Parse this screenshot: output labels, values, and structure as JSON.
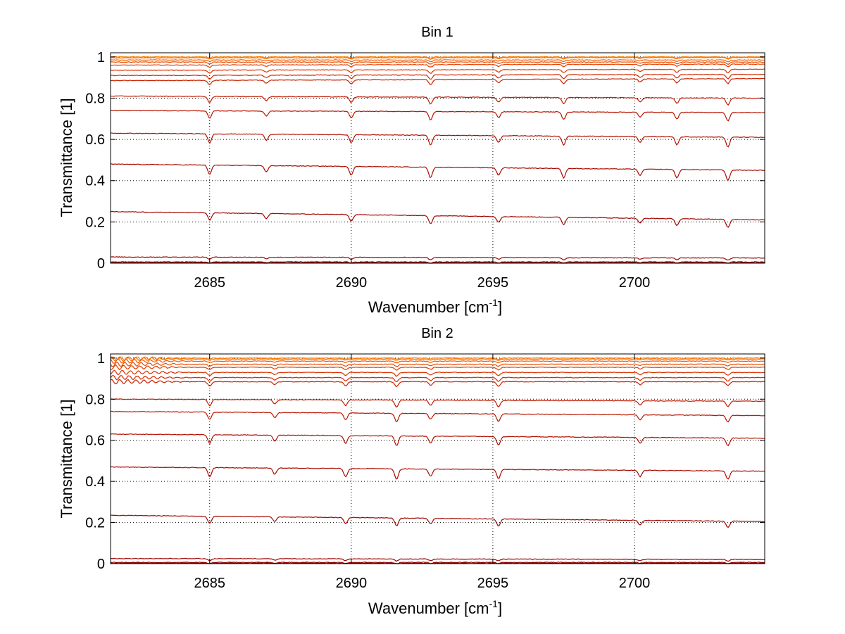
{
  "chart_data": [
    {
      "type": "line",
      "title": "Bin 1",
      "xlabel": "Wavenumber [cm",
      "xlabel_sup": "-1",
      "xlabel_end": "]",
      "ylabel": "Transmittance [1]",
      "xlim": [
        2681.5,
        2704.6
      ],
      "ylim": [
        0,
        1.02
      ],
      "xticks": [
        2685,
        2690,
        2695,
        2700
      ],
      "yticks": [
        0,
        0.2,
        0.4,
        0.6,
        0.8,
        1
      ],
      "ytick_labels": [
        "0",
        "0.2",
        "0.4",
        "0.6",
        "0.8",
        "1"
      ],
      "grid": true,
      "series": [
        {
          "start": 1.0,
          "end": 1.0,
          "color": "#ff8000",
          "lines": [
            2685,
            2687,
            2690,
            2692.8,
            2695.2,
            2697.5,
            2700.2,
            2701.5,
            2703.3
          ]
        },
        {
          "start": 0.995,
          "end": 0.997,
          "color": "#ff6a00",
          "lines": [
            2685,
            2687,
            2690,
            2692.8,
            2695.2,
            2697.5,
            2700.2,
            2701.5,
            2703.3
          ]
        },
        {
          "start": 0.985,
          "end": 0.985,
          "color": "#f25a00",
          "lines": [
            2685,
            2687,
            2690,
            2692.8,
            2695.2,
            2697.5,
            2700.2,
            2701.5,
            2703.3
          ]
        },
        {
          "start": 0.975,
          "end": 0.975,
          "color": "#e84a00",
          "lines": [
            2685,
            2687,
            2690,
            2692.8,
            2695.2,
            2697.5,
            2700.2,
            2701.5,
            2703.3
          ]
        },
        {
          "start": 0.96,
          "end": 0.965,
          "color": "#e03e00",
          "lines": [
            2685,
            2687,
            2690,
            2692.8,
            2695.2,
            2697.5,
            2700.2,
            2701.5,
            2703.3
          ]
        },
        {
          "start": 0.935,
          "end": 0.94,
          "color": "#d83300",
          "lines": [
            2685,
            2687,
            2690,
            2692.8,
            2695.2,
            2697.5,
            2700.2,
            2701.5,
            2703.3
          ]
        },
        {
          "start": 0.91,
          "end": 0.915,
          "color": "#d02a00",
          "lines": [
            2685,
            2687,
            2690,
            2692.8,
            2695.2,
            2697.5,
            2700.2,
            2701.5,
            2703.3
          ]
        },
        {
          "start": 0.885,
          "end": 0.895,
          "color": "#c82200",
          "lines": [
            2685,
            2687,
            2690,
            2692.8,
            2695.2,
            2697.5,
            2700.2,
            2701.5,
            2703.3
          ]
        },
        {
          "start": 0.81,
          "end": 0.8,
          "color": "#c01a00",
          "lines": [
            2685,
            2687,
            2690,
            2692.8,
            2695.2,
            2697.5,
            2700.2,
            2701.5,
            2703.3
          ]
        },
        {
          "start": 0.74,
          "end": 0.73,
          "color": "#b81400",
          "lines": [
            2685,
            2687,
            2690,
            2692.8,
            2695.2,
            2697.5,
            2700.2,
            2701.5,
            2703.3
          ]
        },
        {
          "start": 0.63,
          "end": 0.61,
          "color": "#b00e00",
          "lines": [
            2685,
            2687,
            2690,
            2692.8,
            2695.2,
            2697.5,
            2700.2,
            2701.5,
            2703.3
          ]
        },
        {
          "start": 0.48,
          "end": 0.45,
          "color": "#a80a00",
          "lines": [
            2685,
            2687,
            2690,
            2692.8,
            2695.2,
            2697.5,
            2700.2,
            2701.5,
            2703.3
          ]
        },
        {
          "start": 0.25,
          "end": 0.21,
          "color": "#a00600",
          "lines": [
            2685,
            2687,
            2690,
            2692.8,
            2695.2,
            2697.5,
            2700.2,
            2701.5,
            2703.3
          ]
        },
        {
          "start": 0.03,
          "end": 0.025,
          "color": "#980300",
          "lines": [
            2685,
            2687,
            2690,
            2692.8,
            2695.2,
            2697.5,
            2700.2,
            2701.5,
            2703.3
          ]
        },
        {
          "start": 0.006,
          "end": 0.006,
          "color": "#900000",
          "lines": [
            2685,
            2687,
            2690,
            2692.8,
            2695.2,
            2697.5,
            2700.2,
            2701.5,
            2703.3
          ]
        },
        {
          "start": 0.002,
          "end": 0.002,
          "color": "#880000",
          "lines": [
            2685,
            2687,
            2690,
            2692.8,
            2695.2,
            2697.5,
            2700.2,
            2701.5,
            2703.3
          ]
        }
      ]
    },
    {
      "type": "line",
      "title": "Bin 2",
      "xlabel": "Wavenumber [cm",
      "xlabel_sup": "-1",
      "xlabel_end": "]",
      "ylabel": "Transmittance [1]",
      "xlim": [
        2681.5,
        2704.6
      ],
      "ylim": [
        0,
        1.02
      ],
      "xticks": [
        2685,
        2690,
        2695,
        2700
      ],
      "yticks": [
        0,
        0.2,
        0.4,
        0.6,
        0.8,
        1
      ],
      "ytick_labels": [
        "0",
        "0.2",
        "0.4",
        "0.6",
        "0.8",
        "1"
      ],
      "grid": true,
      "series": [
        {
          "start": 1.0,
          "end": 1.0,
          "color": "#ff8000",
          "lines": [
            2685,
            2687.3,
            2689.8,
            2691.6,
            2692.8,
            2695.2,
            2700.2,
            2703.3
          ]
        },
        {
          "start": 0.995,
          "end": 0.995,
          "color": "#ff6a00",
          "lines": [
            2685,
            2687.3,
            2689.8,
            2691.6,
            2692.8,
            2695.2,
            2700.2,
            2703.3
          ]
        },
        {
          "start": 0.985,
          "end": 0.985,
          "color": "#f25a00",
          "lines": [
            2685,
            2687.3,
            2689.8,
            2691.6,
            2692.8,
            2695.2,
            2700.2,
            2703.3
          ]
        },
        {
          "start": 0.97,
          "end": 0.97,
          "color": "#e84a00",
          "lines": [
            2685,
            2687.3,
            2689.8,
            2691.6,
            2692.8,
            2695.2,
            2700.2,
            2703.3
          ]
        },
        {
          "start": 0.955,
          "end": 0.955,
          "color": "#e03e00",
          "lines": [
            2685,
            2687.3,
            2689.8,
            2691.6,
            2692.8,
            2695.2,
            2700.2,
            2703.3
          ]
        },
        {
          "start": 0.93,
          "end": 0.93,
          "color": "#d83300",
          "lines": [
            2685,
            2687.3,
            2689.8,
            2691.6,
            2692.8,
            2695.2,
            2700.2,
            2703.3
          ]
        },
        {
          "start": 0.905,
          "end": 0.905,
          "color": "#d02a00",
          "lines": [
            2685,
            2687.3,
            2689.8,
            2691.6,
            2692.8,
            2695.2,
            2700.2,
            2703.3
          ]
        },
        {
          "start": 0.885,
          "end": 0.885,
          "color": "#c82200",
          "lines": [
            2685,
            2687.3,
            2689.8,
            2691.6,
            2692.8,
            2695.2,
            2700.2,
            2703.3
          ]
        },
        {
          "start": 0.8,
          "end": 0.79,
          "color": "#c01a00",
          "lines": [
            2685,
            2687.3,
            2689.8,
            2691.6,
            2692.8,
            2695.2,
            2700.2,
            2703.3
          ]
        },
        {
          "start": 0.74,
          "end": 0.72,
          "color": "#b81400",
          "lines": [
            2685,
            2687.3,
            2689.8,
            2691.6,
            2692.8,
            2695.2,
            2700.2,
            2703.3
          ]
        },
        {
          "start": 0.63,
          "end": 0.61,
          "color": "#b00e00",
          "lines": [
            2685,
            2687.3,
            2689.8,
            2691.6,
            2692.8,
            2695.2,
            2700.2,
            2703.3
          ]
        },
        {
          "start": 0.47,
          "end": 0.45,
          "color": "#a80a00",
          "lines": [
            2685,
            2687.3,
            2689.8,
            2691.6,
            2692.8,
            2695.2,
            2700.2,
            2703.3
          ]
        },
        {
          "start": 0.235,
          "end": 0.205,
          "color": "#a00600",
          "lines": [
            2685,
            2687.3,
            2689.8,
            2691.6,
            2692.8,
            2695.2,
            2700.2,
            2703.3
          ]
        },
        {
          "start": 0.025,
          "end": 0.02,
          "color": "#980300",
          "lines": [
            2685,
            2687.3,
            2689.8,
            2691.6,
            2692.8,
            2695.2,
            2700.2,
            2703.3
          ]
        },
        {
          "start": 0.006,
          "end": 0.006,
          "color": "#900000",
          "lines": [
            2685,
            2687.3,
            2689.8,
            2691.6,
            2692.8,
            2695.2,
            2700.2,
            2703.3
          ]
        },
        {
          "start": 0.002,
          "end": 0.002,
          "color": "#880000",
          "lines": [
            2685,
            2687.3,
            2689.8,
            2691.6,
            2692.8,
            2695.2,
            2700.2,
            2703.3
          ]
        }
      ]
    }
  ]
}
